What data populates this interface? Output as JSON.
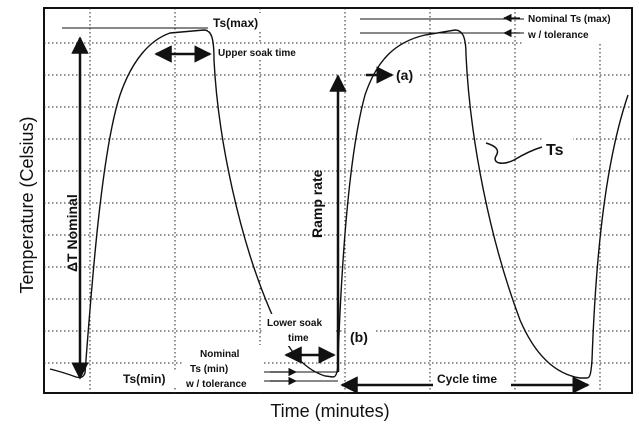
{
  "chart_data": {
    "type": "line",
    "title": "",
    "xlabel": "Time (minutes)",
    "ylabel": "Temperature (Celsius)",
    "grid": true,
    "series": [
      {
        "name": "Ts",
        "description": "thermal cycling profile"
      }
    ]
  },
  "labels": {
    "ts_max": "Ts(max)",
    "ts_min": "Ts(min)",
    "upper_soak": "Upper soak time",
    "lower_soak_1": "Lower soak",
    "lower_soak_2": "time",
    "delta_t": "ΔT Nominal",
    "ramp_rate": "Ramp rate",
    "point_a": "(a)",
    "point_b": "(b)",
    "ts": "Ts",
    "nominal_max_1": "Nominal Ts (max)",
    "nominal_max_2": "w / tolerance",
    "nominal_min_1": "Nominal",
    "nominal_min_2": "Ts (min)",
    "nominal_min_3": "w / tolerance",
    "cycle_time": "Cycle time"
  }
}
